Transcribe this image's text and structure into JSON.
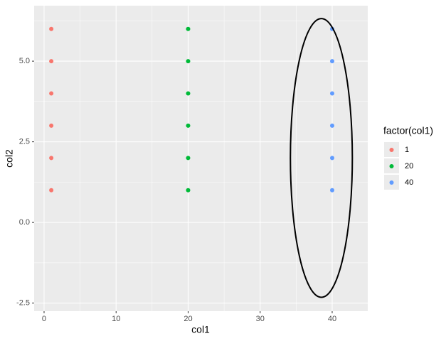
{
  "chart_data": {
    "type": "scatter",
    "x_label": "col1",
    "y_label": "col2",
    "legend_title": "factor(col1)",
    "legend_position": "right",
    "xlim": [
      -1.38,
      44.94
    ],
    "ylim": [
      -2.75,
      6.72
    ],
    "xticks": [
      0,
      10,
      20,
      30,
      40
    ],
    "yticks": [
      -2.5,
      {
        "value": 0,
        "label": "0.0"
      },
      2.5,
      {
        "value": 5,
        "label": "5.0"
      }
    ],
    "xminor": [
      5,
      15,
      25,
      35
    ],
    "yminor": [
      -1.25,
      1.25,
      3.75,
      6.25
    ],
    "grid": true,
    "series": [
      {
        "name": "1",
        "color": "#F8766D",
        "x": [
          1,
          1,
          1,
          1,
          1,
          1
        ],
        "values": [
          1,
          2,
          3,
          4,
          5,
          6
        ]
      },
      {
        "name": "20",
        "color": "#00BA38",
        "x": [
          20,
          20,
          20,
          20,
          20,
          20
        ],
        "values": [
          1,
          2,
          3,
          4,
          5,
          6
        ]
      },
      {
        "name": "40",
        "color": "#619CFF",
        "x": [
          40,
          40,
          40,
          40,
          40,
          40
        ],
        "values": [
          1,
          2,
          3,
          4,
          5,
          6
        ]
      }
    ],
    "ellipse": {
      "cx": 38.5,
      "cy": 2.0,
      "rx": 4.3,
      "ry": 4.32,
      "color": "#000000"
    }
  }
}
